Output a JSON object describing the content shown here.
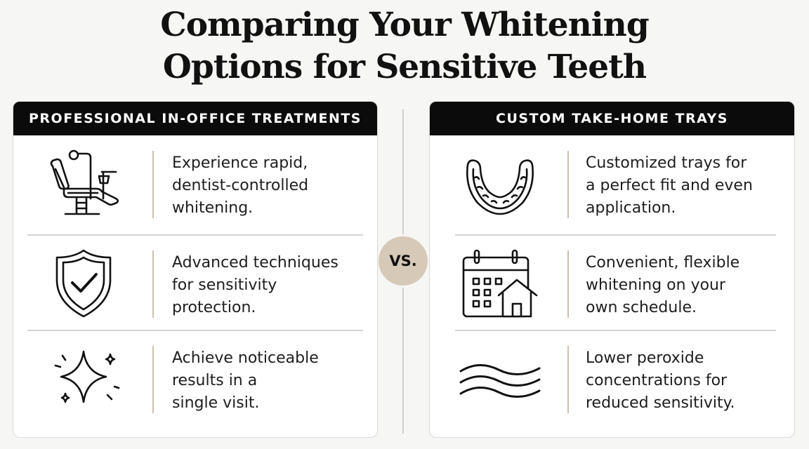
{
  "title": {
    "line1": "Comparing Your Whitening",
    "line2": "Options for Sensitive Teeth"
  },
  "vs_label": "VS.",
  "left_panel": {
    "header": "PROFESSIONAL IN-OFFICE TREATMENTS",
    "items": [
      {
        "icon": "dental-chair-icon",
        "lines": [
          "Experience rapid,",
          "dentist-controlled",
          "whitening."
        ]
      },
      {
        "icon": "shield-check-icon",
        "lines": [
          "Advanced techniques",
          "for sensitivity",
          "protection."
        ]
      },
      {
        "icon": "sparkle-icon",
        "lines": [
          "Achieve noticeable",
          "results in a",
          "single visit."
        ]
      }
    ]
  },
  "right_panel": {
    "header": "CUSTOM TAKE-HOME TRAYS",
    "items": [
      {
        "icon": "dental-tray-icon",
        "lines": [
          "Customized trays for",
          "a perfect fit and even",
          "application."
        ]
      },
      {
        "icon": "calendar-home-icon",
        "lines": [
          "Convenient, flexible",
          "whitening on your",
          "own schedule."
        ]
      },
      {
        "icon": "waves-icon",
        "lines": [
          "Lower peroxide",
          "concentrations for",
          "reduced sensitivity."
        ]
      }
    ]
  },
  "colors": {
    "header_bg": "#0b0b0b",
    "accent_tan": "#d7c9b7",
    "divider_tan": "#cdbfae",
    "background": "#f6f6f5"
  }
}
